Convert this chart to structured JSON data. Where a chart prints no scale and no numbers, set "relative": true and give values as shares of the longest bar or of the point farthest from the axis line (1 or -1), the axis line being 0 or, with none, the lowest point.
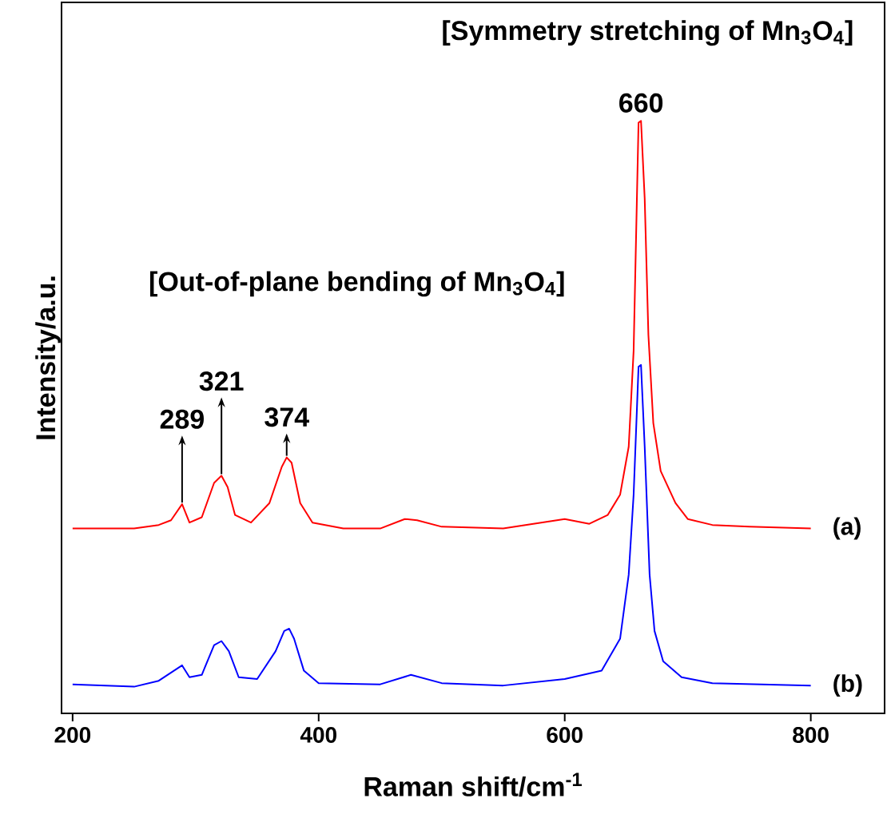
{
  "chart_data": {
    "type": "line",
    "relative": true,
    "xlabel": "Raman shift/cm$^{-1}$",
    "ylabel": "Intensity/a.u.",
    "xlim": [
      191,
      860
    ],
    "xticks": [
      200,
      400,
      600,
      800
    ],
    "marker": "none",
    "line_style": "solid",
    "annotations": [
      "[Symmetry stretching of Mn$_{3}$O$_{4}$]",
      {
        "text": "660",
        "x": 662,
        "y": 1.0
      },
      "[Out-of-plane bending of Mn$_{3}$O$_{4}$]",
      {
        "text": "289",
        "x": 289,
        "y": 0.353
      },
      {
        "text": "321",
        "x": 321,
        "y": 0.401
      },
      {
        "text": "374",
        "x": 374,
        "y": 0.432
      }
    ],
    "series": [
      {
        "name": "(a)",
        "color": "#ff0000",
        "x": [
          200,
          250,
          270,
          280,
          289,
          295,
          305,
          315,
          321,
          326,
          332,
          345,
          360,
          370,
          374,
          378,
          385,
          395,
          420,
          450,
          470,
          480,
          500,
          550,
          600,
          620,
          635,
          645,
          652,
          656,
          660,
          662,
          665,
          668,
          672,
          678,
          690,
          700,
          720,
          750,
          800
        ],
        "values": [
          0.312,
          0.312,
          0.318,
          0.326,
          0.353,
          0.322,
          0.331,
          0.389,
          0.401,
          0.382,
          0.335,
          0.322,
          0.355,
          0.416,
          0.432,
          0.423,
          0.355,
          0.322,
          0.312,
          0.312,
          0.328,
          0.326,
          0.315,
          0.312,
          0.328,
          0.32,
          0.335,
          0.369,
          0.45,
          0.612,
          0.997,
          1.0,
          0.869,
          0.639,
          0.49,
          0.409,
          0.355,
          0.328,
          0.318,
          0.315,
          0.312
        ]
      },
      {
        "name": "(b)",
        "color": "#0000ff",
        "x": [
          200,
          250,
          270,
          289,
          295,
          305,
          315,
          321,
          327,
          335,
          350,
          365,
          372,
          376,
          380,
          388,
          400,
          450,
          475,
          500,
          550,
          600,
          630,
          645,
          652,
          656,
          660,
          662,
          665,
          669,
          673,
          680,
          695,
          720,
          760,
          800
        ],
        "values": [
          0.049,
          0.045,
          0.055,
          0.081,
          0.061,
          0.065,
          0.115,
          0.122,
          0.105,
          0.061,
          0.058,
          0.105,
          0.139,
          0.143,
          0.126,
          0.072,
          0.051,
          0.049,
          0.065,
          0.051,
          0.047,
          0.058,
          0.072,
          0.126,
          0.234,
          0.369,
          0.585,
          0.588,
          0.45,
          0.234,
          0.139,
          0.088,
          0.061,
          0.051,
          0.049,
          0.047
        ]
      }
    ]
  }
}
